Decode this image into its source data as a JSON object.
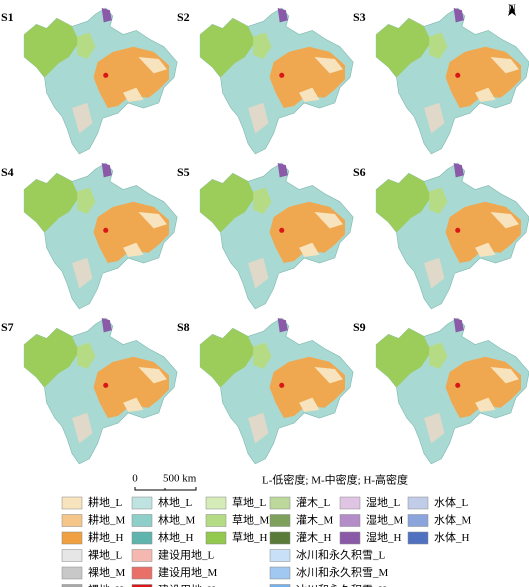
{
  "panels": [
    "S1",
    "S2",
    "S3",
    "S4",
    "S5",
    "S6",
    "S7",
    "S8",
    "S9"
  ],
  "north": "N",
  "scale_bar": {
    "start": "0",
    "end": "500 km"
  },
  "density_note": "L-低密度; M-中密度; H-高密度",
  "legend": {
    "columns": [
      [
        {
          "label": "耕地_L",
          "color": "#f7e3bd"
        },
        {
          "label": "耕地_M",
          "color": "#f5c58a"
        },
        {
          "label": "耕地_H",
          "color": "#f0a040"
        },
        {
          "label": "裸地_L",
          "color": "#e6e6e6"
        },
        {
          "label": "裸地_M",
          "color": "#c8c8c8"
        },
        {
          "label": "裸地_H",
          "color": "#a8a8a8"
        }
      ],
      [
        {
          "label": "林地_L",
          "color": "#bfe3e0"
        },
        {
          "label": "林地_M",
          "color": "#8fcfca"
        },
        {
          "label": "林地_H",
          "color": "#5fb5ae"
        },
        {
          "label": "建设用地_L",
          "color": "#f4b8b0"
        },
        {
          "label": "建设用地_M",
          "color": "#e87068"
        },
        {
          "label": "建设用地_H",
          "color": "#d81818"
        }
      ],
      [
        {
          "label": "草地_L",
          "color": "#d5ebb8"
        },
        {
          "label": "草地_M",
          "color": "#b5dc84"
        },
        {
          "label": "草地_H",
          "color": "#93c94e"
        }
      ],
      [
        {
          "label": "灌木_L",
          "color": "#bcd89a"
        },
        {
          "label": "灌木_M",
          "color": "#7fa05a"
        },
        {
          "label": "灌木_H",
          "color": "#5a7a3a"
        },
        {
          "label": "冰川和永久积雪_L",
          "color": "#c8e0f8"
        },
        {
          "label": "冰川和永久积雪_M",
          "color": "#a0c8f0"
        },
        {
          "label": "冰川和永久积雪_H",
          "color": "#78b0e8"
        }
      ],
      [
        {
          "label": "湿地_L",
          "color": "#e0c4e4"
        },
        {
          "label": "湿地_M",
          "color": "#b48cc8"
        },
        {
          "label": "湿地_H",
          "color": "#8a5aa8"
        }
      ],
      [
        {
          "label": "水体_L",
          "color": "#c0cce8"
        },
        {
          "label": "水体_M",
          "color": "#8ca4dc"
        },
        {
          "label": "水体_H",
          "color": "#5070c0"
        }
      ]
    ]
  }
}
